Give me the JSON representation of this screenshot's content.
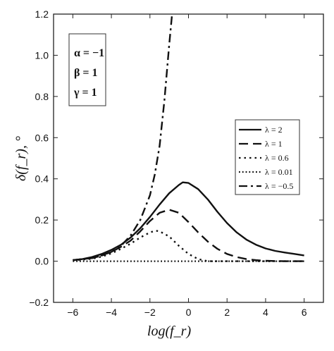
{
  "chart_data": {
    "type": "line",
    "xlabel": "log(f_r)",
    "ylabel": "δ(f_r), °",
    "xlim": [
      -7,
      7
    ],
    "ylim": [
      -0.2,
      1.2
    ],
    "xticks": [
      "−6",
      "−4",
      "−2",
      "0",
      "2",
      "4",
      "6"
    ],
    "yticks": [
      "−0.2",
      "0.0",
      "0.2",
      "0.4",
      "0.6",
      "0.8",
      "1.0",
      "1.2"
    ],
    "grid": false,
    "legend_position": "right",
    "annotation": {
      "lines": [
        "α = −1",
        "β = 1",
        "γ = 1"
      ]
    },
    "series": [
      {
        "name": "λ = 2",
        "dash": "solid",
        "points": [
          [
            -6.0,
            0.005
          ],
          [
            -5.5,
            0.01
          ],
          [
            -5.0,
            0.02
          ],
          [
            -4.5,
            0.035
          ],
          [
            -4.0,
            0.055
          ],
          [
            -3.5,
            0.08
          ],
          [
            -3.0,
            0.115
          ],
          [
            -2.5,
            0.16
          ],
          [
            -2.0,
            0.215
          ],
          [
            -1.5,
            0.275
          ],
          [
            -1.0,
            0.33
          ],
          [
            -0.5,
            0.37
          ],
          [
            -0.3,
            0.383
          ],
          [
            0.0,
            0.38
          ],
          [
            0.5,
            0.35
          ],
          [
            1.0,
            0.3
          ],
          [
            1.5,
            0.24
          ],
          [
            2.0,
            0.185
          ],
          [
            2.5,
            0.14
          ],
          [
            3.0,
            0.105
          ],
          [
            3.5,
            0.08
          ],
          [
            4.0,
            0.062
          ],
          [
            4.5,
            0.05
          ],
          [
            5.0,
            0.042
          ],
          [
            5.5,
            0.035
          ],
          [
            6.0,
            0.028
          ]
        ]
      },
      {
        "name": "λ = 1",
        "dash": "dash",
        "points": [
          [
            -6.0,
            0.005
          ],
          [
            -5.0,
            0.015
          ],
          [
            -4.5,
            0.028
          ],
          [
            -4.0,
            0.045
          ],
          [
            -3.5,
            0.07
          ],
          [
            -3.0,
            0.1
          ],
          [
            -2.5,
            0.145
          ],
          [
            -2.0,
            0.195
          ],
          [
            -1.5,
            0.235
          ],
          [
            -1.0,
            0.25
          ],
          [
            -0.5,
            0.235
          ],
          [
            0.0,
            0.19
          ],
          [
            0.5,
            0.14
          ],
          [
            1.0,
            0.095
          ],
          [
            1.5,
            0.06
          ],
          [
            2.0,
            0.035
          ],
          [
            2.5,
            0.02
          ],
          [
            3.0,
            0.01
          ],
          [
            3.5,
            0.005
          ],
          [
            4.0,
            0.002
          ],
          [
            5.0,
            0.0
          ],
          [
            6.0,
            0.0
          ]
        ]
      },
      {
        "name": "λ = 0.6",
        "dash": "dot-dash",
        "points": [
          [
            -6.0,
            0.004
          ],
          [
            -5.0,
            0.012
          ],
          [
            -4.5,
            0.022
          ],
          [
            -4.0,
            0.038
          ],
          [
            -3.5,
            0.06
          ],
          [
            -3.0,
            0.085
          ],
          [
            -2.5,
            0.115
          ],
          [
            -2.0,
            0.14
          ],
          [
            -1.7,
            0.148
          ],
          [
            -1.5,
            0.145
          ],
          [
            -1.0,
            0.12
          ],
          [
            -0.5,
            0.075
          ],
          [
            0.0,
            0.035
          ],
          [
            0.5,
            0.01
          ],
          [
            1.0,
            0.0
          ],
          [
            2.0,
            0.0
          ],
          [
            4.0,
            0.0
          ],
          [
            6.0,
            0.0
          ]
        ]
      },
      {
        "name": "λ = 0.01",
        "dash": "dot",
        "points": [
          [
            -6.0,
            0.0
          ],
          [
            -3.0,
            0.0
          ],
          [
            0.0,
            0.0
          ],
          [
            3.0,
            0.0
          ],
          [
            6.0,
            0.0
          ]
        ]
      },
      {
        "name": "λ = −0.5",
        "dash": "dashdot",
        "points": [
          [
            -6.0,
            0.005
          ],
          [
            -5.0,
            0.015
          ],
          [
            -4.5,
            0.027
          ],
          [
            -4.0,
            0.045
          ],
          [
            -3.5,
            0.075
          ],
          [
            -3.0,
            0.125
          ],
          [
            -2.5,
            0.2
          ],
          [
            -2.0,
            0.32
          ],
          [
            -1.75,
            0.42
          ],
          [
            -1.5,
            0.56
          ],
          [
            -1.25,
            0.78
          ],
          [
            -1.0,
            1.05
          ],
          [
            -0.85,
            1.2
          ]
        ]
      }
    ]
  }
}
